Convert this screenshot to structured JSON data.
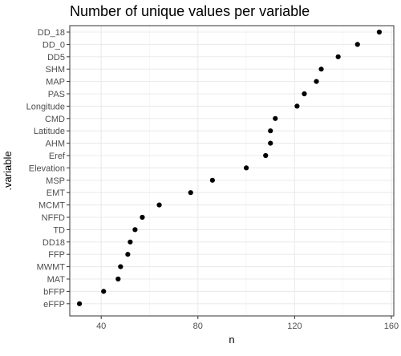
{
  "chart_data": {
    "type": "scatter",
    "title": "Number of unique values per variable",
    "xlabel": "n",
    "ylabel": ".variable",
    "xlim": [
      27,
      161
    ],
    "x_ticks": [
      40,
      80,
      120,
      160
    ],
    "grid": true,
    "categories": [
      "DD_18",
      "DD_0",
      "DD5",
      "SHM",
      "MAP",
      "PAS",
      "Longitude",
      "CMD",
      "Latitude",
      "AHM",
      "Eref",
      "Elevation",
      "MSP",
      "EMT",
      "MCMT",
      "NFFD",
      "TD",
      "DD18",
      "FFP",
      "MWMT",
      "MAT",
      "bFFP",
      "eFFP"
    ],
    "values": [
      155,
      146,
      138,
      131,
      129,
      124,
      121,
      112,
      110,
      110,
      108,
      100,
      86,
      77,
      64,
      57,
      54,
      52,
      51,
      48,
      47,
      41,
      31
    ],
    "point_color": "#000000"
  }
}
